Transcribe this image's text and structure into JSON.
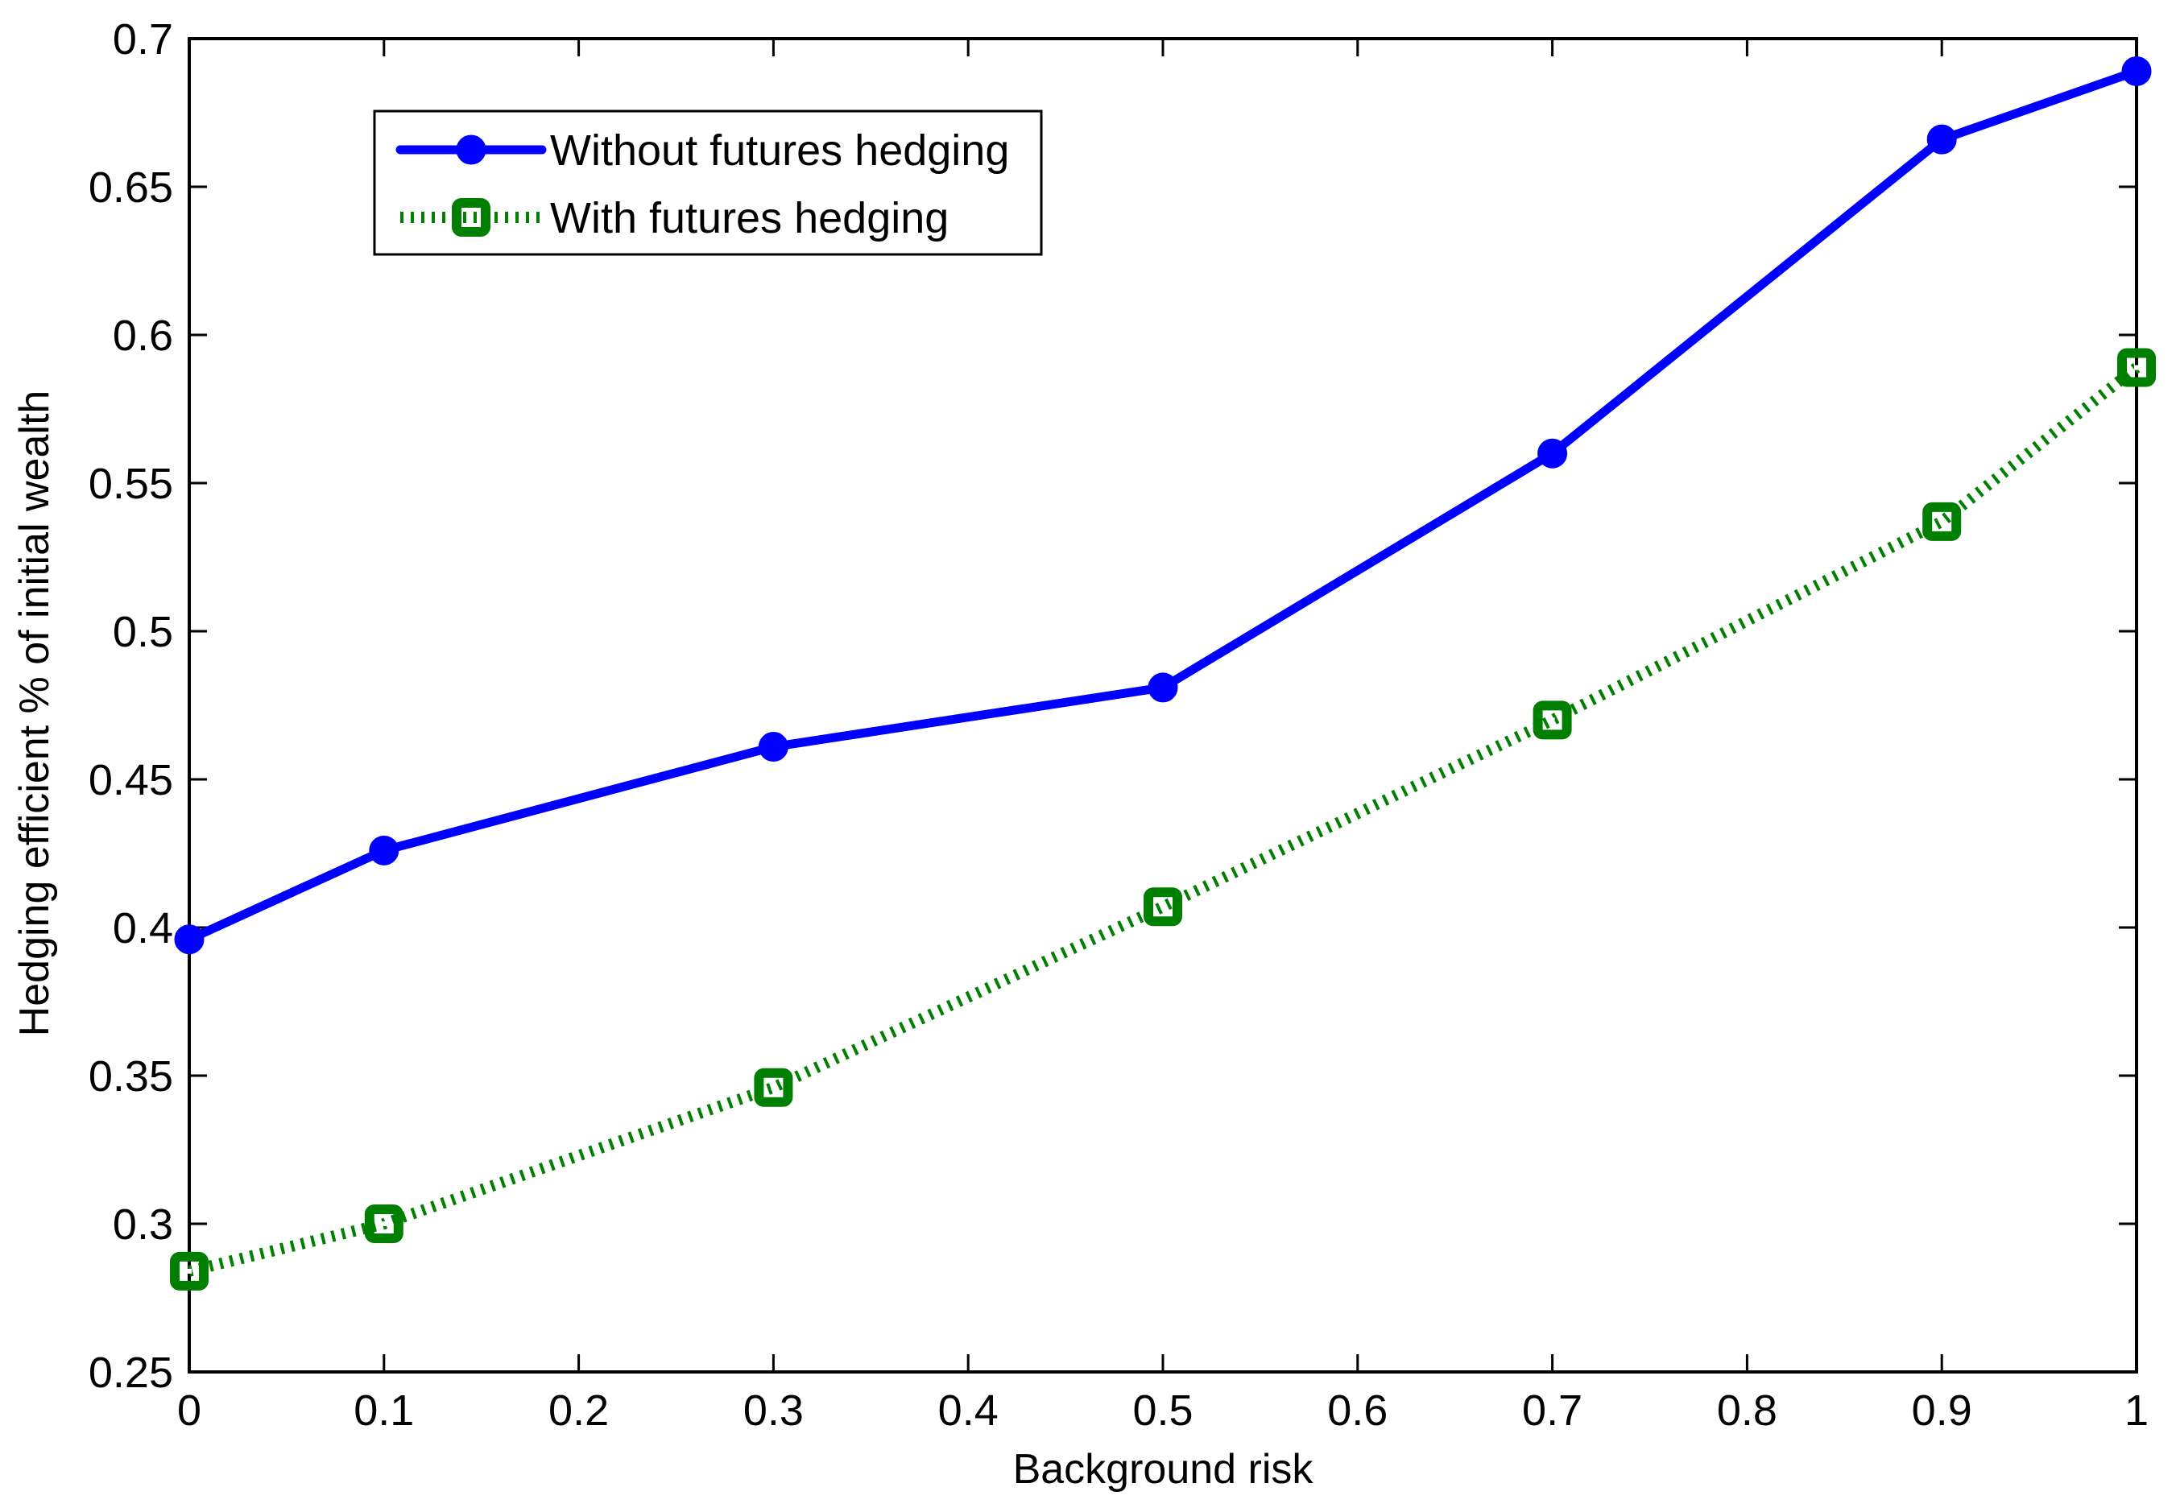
{
  "chart_data": {
    "type": "line",
    "xlabel": "Background risk",
    "ylabel": "Hedging efficient % of initial wealth",
    "xlim": [
      0,
      1
    ],
    "ylim": [
      0.25,
      0.7
    ],
    "xticks": [
      0,
      0.1,
      0.2,
      0.3,
      0.4,
      0.5,
      0.6,
      0.7,
      0.8,
      0.9,
      1
    ],
    "xtick_labels": [
      "0",
      "0.1",
      "0.2",
      "0.3",
      "0.4",
      "0.5",
      "0.6",
      "0.7",
      "0.8",
      "0.9",
      "1"
    ],
    "yticks": [
      0.25,
      0.3,
      0.35,
      0.4,
      0.45,
      0.5,
      0.55,
      0.6,
      0.65,
      0.7
    ],
    "ytick_labels": [
      "0.25",
      "0.3",
      "0.35",
      "0.4",
      "0.45",
      "0.5",
      "0.55",
      "0.6",
      "0.65",
      "0.7"
    ],
    "grid": false,
    "legend_position": "top-left",
    "x": [
      0,
      0.1,
      0.3,
      0.5,
      0.7,
      0.9,
      1
    ],
    "series": [
      {
        "name": "Without futures hedging",
        "values": [
          0.396,
          0.426,
          0.461,
          0.481,
          0.56,
          0.666,
          0.689
        ],
        "color": "#0000ff",
        "line_style": "solid",
        "marker": "filled-circle"
      },
      {
        "name": "With futures hedging",
        "values": [
          0.284,
          0.3,
          0.346,
          0.407,
          0.47,
          0.537,
          0.589
        ],
        "color": "#007f00",
        "line_style": "dotted",
        "marker": "square"
      }
    ]
  }
}
